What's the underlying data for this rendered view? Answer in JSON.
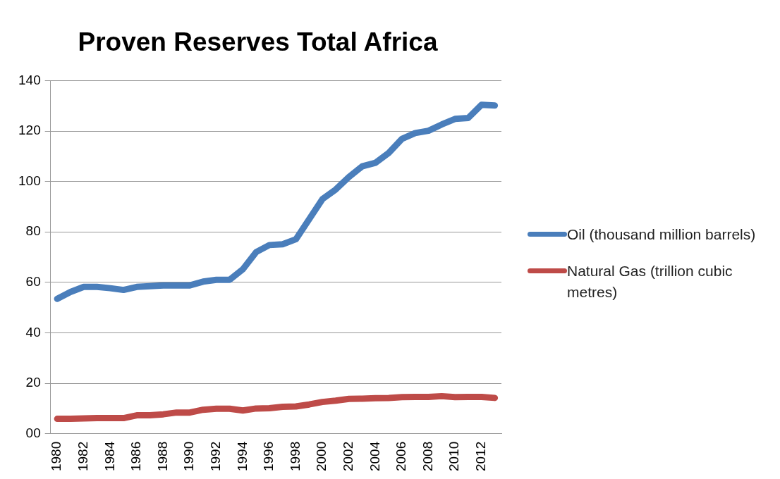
{
  "chart_data": {
    "type": "line",
    "title": "Proven Reserves Total Africa",
    "categories": [
      "1980",
      null,
      "1982",
      null,
      "1984",
      null,
      "1986",
      null,
      "1988",
      null,
      "1990",
      null,
      "1992",
      null,
      "1994",
      null,
      "1996",
      null,
      "1998",
      null,
      "2000",
      null,
      "2002",
      null,
      "2004",
      null,
      "2006",
      null,
      "2008",
      null,
      "2010",
      null,
      "2012",
      null
    ],
    "series": [
      {
        "name": "Oil (thousand million barrels)",
        "color": "#4a7ebb",
        "values": [
          53.5,
          56.2,
          58.2,
          58.2,
          57.7,
          57.0,
          58.2,
          58.5,
          58.8,
          58.8,
          58.8,
          60.3,
          61.0,
          61.0,
          65.2,
          72.0,
          74.8,
          75.1,
          77.1,
          85.0,
          93.0,
          96.8,
          101.8,
          106.0,
          107.4,
          111.3,
          116.9,
          119.2,
          120.1,
          122.6,
          124.8,
          125.2,
          130.4,
          130.1
        ]
      },
      {
        "name": "Natural Gas (trillion cubic metres)",
        "color": "#be4b48",
        "values": [
          5.9,
          5.9,
          6.1,
          6.2,
          6.2,
          6.2,
          7.3,
          7.3,
          7.7,
          8.4,
          8.4,
          9.5,
          9.9,
          9.9,
          9.2,
          10.0,
          10.1,
          10.7,
          10.8,
          11.6,
          12.6,
          13.1,
          13.8,
          13.9,
          14.1,
          14.2,
          14.5,
          14.6,
          14.6,
          14.9,
          14.5,
          14.6,
          14.6,
          14.2
        ]
      }
    ],
    "ylim": [
      0,
      140
    ],
    "yticks": [
      {
        "value": 0,
        "label": "00"
      },
      20,
      40,
      60,
      80,
      100,
      120,
      140
    ],
    "grid": "y",
    "legend": "right",
    "marker": "none",
    "line_style": "solid"
  }
}
